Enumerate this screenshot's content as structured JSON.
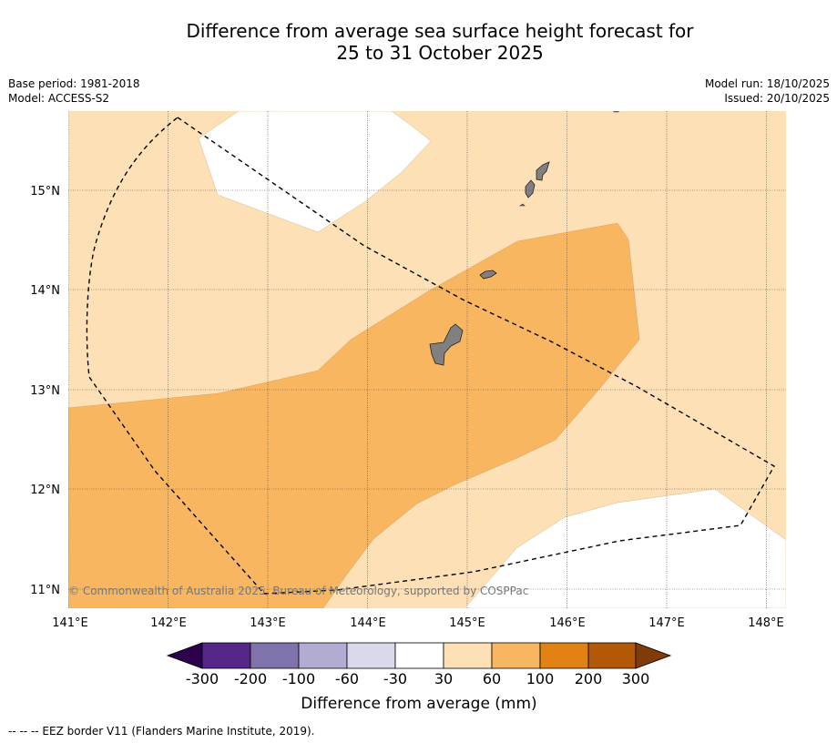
{
  "title_line1": "Difference from average sea surface height forecast for",
  "title_line2": "25 to 31 October 2025",
  "meta_left": {
    "base_period": "Base period: 1981-2018",
    "model": "Model: ACCESS-S2"
  },
  "meta_right": {
    "model_run": "Model run: 18/10/2025",
    "issued": "Issued: 20/10/2025"
  },
  "map": {
    "lon_labels": [
      "141°E",
      "142°E",
      "143°E",
      "144°E",
      "145°E",
      "146°E",
      "147°E",
      "148°E"
    ],
    "lat_labels": [
      "15°N",
      "14°N",
      "13°N",
      "12°N",
      "11°N"
    ],
    "copyright": "© Commonwealth of Australia 2025, Bureau of Meteorology, supported by COSPPac"
  },
  "colorbar": {
    "label": "Difference from average (mm)",
    "ticks": [
      "-300",
      "-200",
      "-100",
      "-60",
      "-30",
      "30",
      "60",
      "100",
      "200",
      "300"
    ],
    "colors": {
      "under": "#2d004b",
      "c1": "#542788",
      "c2": "#8073ac",
      "c3": "#b2abd2",
      "c4": "#d8daeb",
      "c5": "#ffffff",
      "c6": "#fee0b6",
      "c7": "#f9b660",
      "c8": "#e08214",
      "c9": "#b35806",
      "over": "#7f3b08"
    }
  },
  "footer": "--  --  -- EEZ border V11 (Flanders Marine Institute, 2019)."
}
